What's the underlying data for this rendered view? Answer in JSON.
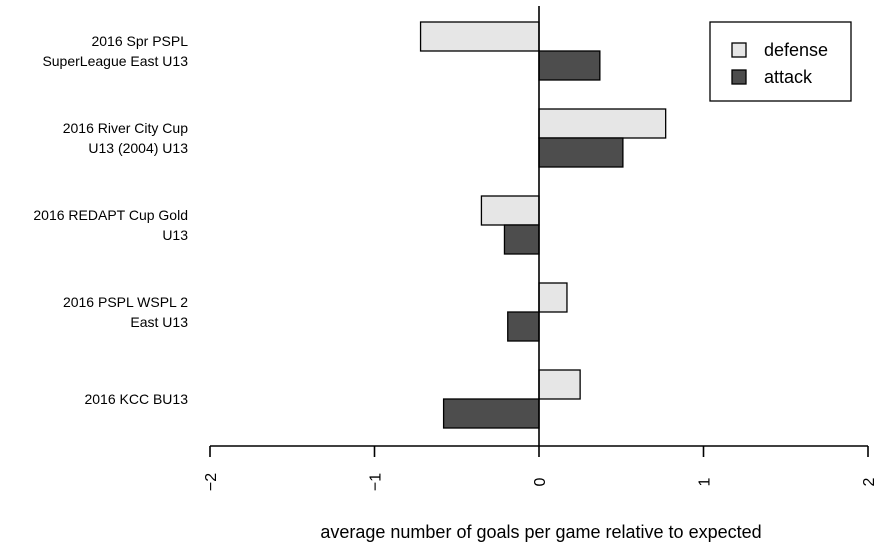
{
  "chart_data": {
    "type": "bar",
    "orientation": "horizontal",
    "categories": [
      [
        "2016 Spr PSPL",
        "SuperLeague East U13"
      ],
      [
        "2016 River City Cup",
        "U13 (2004) U13"
      ],
      [
        "2016 REDAPT Cup Gold",
        "U13"
      ],
      [
        "2016 PSPL WSPL 2",
        "East U13"
      ],
      [
        "2016 KCC BU13"
      ]
    ],
    "series": [
      {
        "name": "defense",
        "color": "#e6e6e6",
        "values": [
          -0.72,
          0.77,
          -0.35,
          0.17,
          0.25
        ]
      },
      {
        "name": "attack",
        "color": "#4d4d4d",
        "values": [
          0.37,
          0.51,
          -0.21,
          -0.19,
          -0.58
        ]
      }
    ],
    "xlabel": "average number of goals per game relative to expected",
    "ylabel": "",
    "xlim": [
      -2,
      2
    ],
    "xticks": [
      -2,
      -1,
      0,
      1,
      2
    ],
    "grid": false,
    "legend_position": "top-right"
  }
}
